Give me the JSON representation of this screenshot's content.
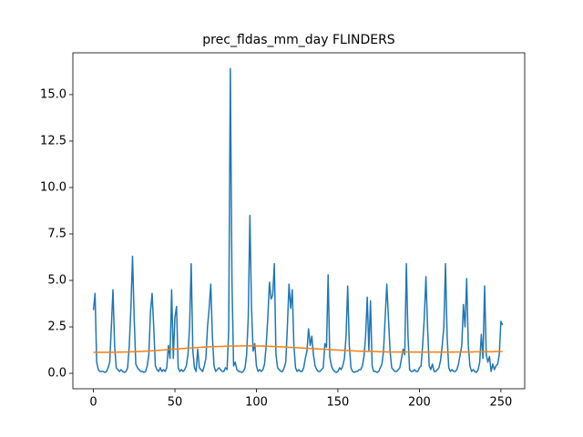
{
  "chart_data": {
    "type": "line",
    "title": "prec_fldas_mm_day FLINDERS",
    "x": [
      0,
      1,
      2,
      3,
      4,
      5,
      6,
      7,
      8,
      9,
      10,
      11,
      12,
      13,
      14,
      15,
      16,
      17,
      18,
      19,
      20,
      21,
      22,
      23,
      24,
      25,
      26,
      27,
      28,
      29,
      30,
      31,
      32,
      33,
      34,
      35,
      36,
      37,
      38,
      39,
      40,
      41,
      42,
      43,
      44,
      45,
      46,
      47,
      48,
      49,
      50,
      51,
      52,
      53,
      54,
      55,
      56,
      57,
      58,
      59,
      60,
      61,
      62,
      63,
      64,
      65,
      66,
      67,
      68,
      69,
      70,
      71,
      72,
      73,
      74,
      75,
      76,
      77,
      78,
      79,
      80,
      81,
      82,
      83,
      84,
      85,
      86,
      87,
      88,
      89,
      90,
      91,
      92,
      93,
      94,
      95,
      96,
      97,
      98,
      99,
      100,
      101,
      102,
      103,
      104,
      105,
      106,
      107,
      108,
      109,
      110,
      111,
      112,
      113,
      114,
      115,
      116,
      117,
      118,
      119,
      120,
      121,
      122,
      123,
      124,
      125,
      126,
      127,
      128,
      129,
      130,
      131,
      132,
      133,
      134,
      135,
      136,
      137,
      138,
      139,
      140,
      141,
      142,
      143,
      144,
      145,
      146,
      147,
      148,
      149,
      150,
      151,
      152,
      153,
      154,
      155,
      156,
      157,
      158,
      159,
      160,
      161,
      162,
      163,
      164,
      165,
      166,
      167,
      168,
      169,
      170,
      171,
      172,
      173,
      174,
      175,
      176,
      177,
      178,
      179,
      180,
      181,
      182,
      183,
      184,
      185,
      186,
      187,
      188,
      189,
      190,
      191,
      192,
      193,
      194,
      195,
      196,
      197,
      198,
      199,
      200,
      201,
      202,
      203,
      204,
      205,
      206,
      207,
      208,
      209,
      210,
      211,
      212,
      213,
      214,
      215,
      216,
      217,
      218,
      219,
      220,
      221,
      222,
      223,
      224,
      225,
      226,
      227,
      228,
      229,
      230,
      231,
      232,
      233,
      234,
      235,
      236,
      237,
      238,
      239,
      240,
      241,
      242,
      243,
      244,
      245,
      246,
      247,
      248,
      249,
      250,
      251
    ],
    "series": [
      {
        "color": "#1f77b4",
        "values": [
          3.4,
          4.3,
          0.6,
          0.2,
          0.1,
          0.1,
          0.1,
          0.05,
          0.1,
          0.3,
          0.6,
          2.5,
          4.5,
          1.5,
          0.3,
          0.2,
          0.1,
          0.2,
          0.1,
          0.05,
          0.1,
          0.3,
          1.5,
          3.5,
          6.3,
          3.0,
          0.5,
          0.3,
          0.2,
          0.1,
          0.1,
          0.05,
          0.1,
          0.4,
          1.0,
          3.3,
          4.3,
          2.5,
          0.4,
          0.2,
          0.1,
          0.3,
          0.1,
          0.2,
          0.1,
          0.3,
          1.5,
          0.8,
          4.5,
          0.8,
          3.0,
          3.6,
          0.3,
          0.1,
          0.2,
          0.1,
          0.2,
          0.4,
          1.0,
          2.5,
          5.9,
          1.2,
          0.3,
          0.1,
          1.3,
          0.3,
          0.2,
          0.1,
          0.4,
          0.8,
          2.5,
          3.5,
          4.8,
          2.0,
          0.4,
          0.1,
          0.2,
          0.3,
          0.2,
          0.1,
          0.1,
          0.3,
          0.2,
          2.3,
          16.4,
          5.0,
          0.4,
          0.6,
          0.2,
          0.1,
          0.1,
          0.05,
          0.1,
          0.3,
          1.0,
          3.0,
          8.5,
          3.5,
          1.2,
          1.6,
          0.4,
          0.1,
          0.2,
          0.1,
          0.2,
          0.5,
          1.5,
          3.0,
          4.9,
          4.0,
          4.2,
          5.9,
          1.0,
          0.3,
          0.2,
          0.1,
          0.1,
          0.3,
          0.6,
          2.5,
          4.8,
          3.5,
          4.5,
          1.5,
          0.3,
          0.1,
          0.2,
          0.1,
          0.1,
          0.3,
          0.8,
          1.2,
          2.4,
          1.5,
          2.0,
          1.0,
          0.4,
          0.2,
          0.1,
          0.1,
          0.2,
          0.3,
          1.6,
          1.4,
          5.3,
          0.9,
          0.4,
          0.2,
          0.1,
          0.05,
          0.1,
          0.3,
          0.2,
          0.4,
          0.8,
          2.0,
          4.7,
          1.5,
          0.3,
          0.1,
          0.05,
          0.1,
          0.1,
          0.2,
          0.2,
          0.4,
          0.9,
          2.0,
          4.1,
          1.2,
          3.9,
          0.4,
          0.1,
          0.1,
          0.05,
          0.1,
          0.3,
          0.5,
          1.2,
          3.0,
          4.8,
          3.0,
          1.2,
          0.3,
          0.2,
          0.1,
          0.1,
          0.2,
          0.3,
          0.8,
          1.3,
          1.0,
          5.9,
          2.0,
          0.2,
          0.1,
          0.1,
          0.2,
          0.1,
          0.1,
          0.3,
          0.4,
          1.5,
          3.0,
          5.2,
          2.5,
          0.4,
          0.2,
          0.5,
          0.1,
          0.1,
          0.2,
          0.3,
          0.7,
          1.5,
          2.5,
          5.9,
          2.0,
          0.3,
          0.1,
          0.2,
          0.1,
          0.1,
          0.2,
          0.5,
          1.0,
          1.5,
          3.7,
          2.5,
          5.1,
          1.5,
          0.4,
          0.1,
          0.2,
          0.1,
          0.05,
          0.2,
          0.6,
          2.1,
          0.8,
          4.7,
          1.0,
          0.6,
          0.9,
          0.1,
          0.5,
          0.2,
          0.4,
          0.5,
          1.0,
          2.8,
          2.6
        ]
      },
      {
        "color": "#ff7f0e",
        "values": [
          1.13,
          1.13,
          1.13,
          1.13,
          1.13,
          1.13,
          1.13,
          1.13,
          1.13,
          1.13,
          1.13,
          1.13,
          1.13,
          1.13,
          1.13,
          1.14,
          1.14,
          1.14,
          1.14,
          1.15,
          1.15,
          1.15,
          1.15,
          1.16,
          1.16,
          1.16,
          1.17,
          1.17,
          1.17,
          1.18,
          1.18,
          1.19,
          1.19,
          1.2,
          1.2,
          1.21,
          1.21,
          1.22,
          1.22,
          1.23,
          1.24,
          1.24,
          1.25,
          1.26,
          1.26,
          1.27,
          1.28,
          1.28,
          1.29,
          1.3,
          1.3,
          1.31,
          1.32,
          1.32,
          1.33,
          1.34,
          1.34,
          1.35,
          1.36,
          1.36,
          1.37,
          1.37,
          1.38,
          1.38,
          1.39,
          1.4,
          1.4,
          1.41,
          1.41,
          1.42,
          1.42,
          1.43,
          1.43,
          1.43,
          1.44,
          1.44,
          1.44,
          1.45,
          1.45,
          1.45,
          1.46,
          1.46,
          1.46,
          1.46,
          1.47,
          1.47,
          1.47,
          1.47,
          1.47,
          1.47,
          1.48,
          1.48,
          1.48,
          1.48,
          1.48,
          1.48,
          1.48,
          1.48,
          1.48,
          1.48,
          1.47,
          1.47,
          1.47,
          1.47,
          1.47,
          1.46,
          1.46,
          1.46,
          1.45,
          1.45,
          1.45,
          1.44,
          1.44,
          1.43,
          1.43,
          1.43,
          1.42,
          1.42,
          1.41,
          1.41,
          1.4,
          1.4,
          1.39,
          1.39,
          1.38,
          1.38,
          1.37,
          1.37,
          1.36,
          1.36,
          1.35,
          1.35,
          1.34,
          1.34,
          1.33,
          1.33,
          1.32,
          1.32,
          1.31,
          1.31,
          1.3,
          1.3,
          1.29,
          1.29,
          1.28,
          1.28,
          1.27,
          1.27,
          1.26,
          1.26,
          1.25,
          1.25,
          1.24,
          1.24,
          1.23,
          1.23,
          1.22,
          1.22,
          1.22,
          1.21,
          1.21,
          1.2,
          1.2,
          1.2,
          1.19,
          1.19,
          1.19,
          1.18,
          1.18,
          1.18,
          1.18,
          1.17,
          1.17,
          1.17,
          1.17,
          1.16,
          1.16,
          1.16,
          1.16,
          1.16,
          1.15,
          1.15,
          1.15,
          1.15,
          1.15,
          1.15,
          1.15,
          1.15,
          1.15,
          1.15,
          1.15,
          1.15,
          1.15,
          1.15,
          1.15,
          1.14,
          1.14,
          1.14,
          1.14,
          1.14,
          1.14,
          1.14,
          1.14,
          1.14,
          1.14,
          1.14,
          1.14,
          1.14,
          1.14,
          1.14,
          1.14,
          1.14,
          1.14,
          1.14,
          1.14,
          1.14,
          1.14,
          1.14,
          1.14,
          1.14,
          1.14,
          1.14,
          1.15,
          1.15,
          1.15,
          1.15,
          1.15,
          1.15,
          1.15,
          1.15,
          1.15,
          1.15,
          1.15,
          1.15,
          1.16,
          1.16,
          1.16,
          1.16,
          1.16,
          1.16,
          1.16,
          1.16,
          1.16,
          1.16,
          1.16,
          1.16,
          1.17,
          1.17,
          1.17,
          1.17,
          1.17,
          1.17
        ]
      }
    ],
    "xlim": [
      -12.6,
      264.6
    ],
    "ylim": [
      -0.83,
      17.25
    ],
    "xticks": [
      0,
      50,
      100,
      150,
      200,
      250
    ],
    "yticks": [
      {
        "value": 0,
        "label": "0.0"
      },
      {
        "value": 2.5,
        "label": "2.5"
      },
      {
        "value": 5,
        "label": "5.0"
      },
      {
        "value": 7.5,
        "label": "7.5"
      },
      {
        "value": 10,
        "label": "10.0"
      },
      {
        "value": 12.5,
        "label": "12.5"
      },
      {
        "value": 15,
        "label": "15.0"
      }
    ]
  }
}
